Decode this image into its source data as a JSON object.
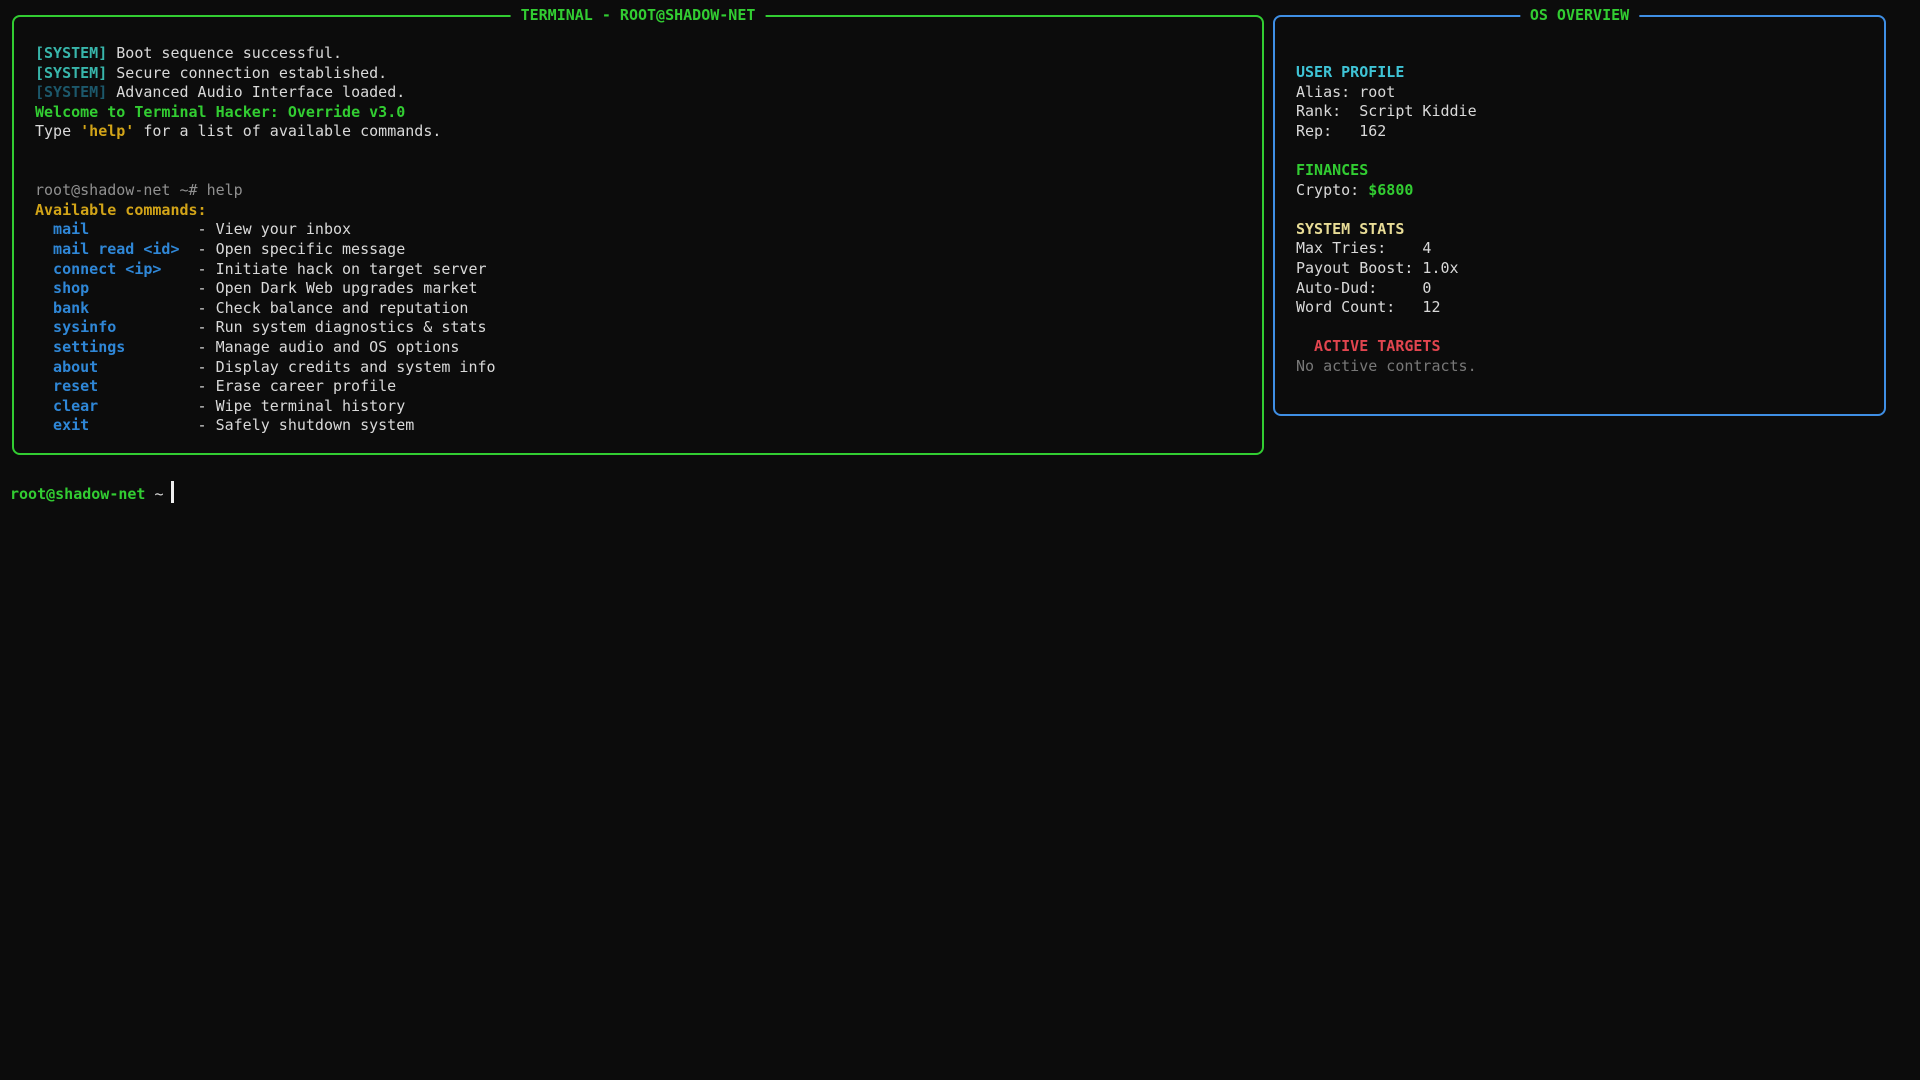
{
  "window": {
    "background": "#0c0c0c"
  },
  "colors": {
    "terminal_border": "#32cd32",
    "os_border": "#3f8fe5",
    "green": "#32cd32",
    "command_blue": "#2f87d7",
    "system_tag_teal": "#38b6ab",
    "system_tag_dim": "#1c586b",
    "cyan": "#3fc4d6",
    "gold": "#d2a418",
    "pale_yellow": "#e8dc96",
    "red": "#e2454f",
    "text": "#d9d9d9",
    "gray": "#909090",
    "muted": "#787878"
  },
  "terminal": {
    "title": "TERMINAL - ROOT@SHADOW-NET",
    "boot_lines": [
      {
        "tag": "[SYSTEM]",
        "text": "Boot sequence successful."
      },
      {
        "tag": "[SYSTEM]",
        "text": "Secure connection established."
      },
      {
        "tag": "[SYSTEM]",
        "text": "Advanced Audio Interface loaded."
      }
    ],
    "welcome": "Welcome to Terminal Hacker: Override v3.0",
    "hint": {
      "prefix": "Type ",
      "code": "'help'",
      "suffix": " for a list of available commands."
    },
    "history_command": "root@shadow-net ~# help",
    "commands_header": "Available commands:",
    "commands": [
      {
        "name": "mail",
        "desc": "- View your inbox"
      },
      {
        "name": "mail read <id>",
        "desc": "- Open specific message"
      },
      {
        "name": "connect <ip>",
        "desc": "- Initiate hack on target server"
      },
      {
        "name": "shop",
        "desc": "- Open Dark Web upgrades market"
      },
      {
        "name": "bank",
        "desc": "- Check balance and reputation"
      },
      {
        "name": "sysinfo",
        "desc": "- Run system diagnostics & stats"
      },
      {
        "name": "settings",
        "desc": "- Manage audio and OS options"
      },
      {
        "name": "about",
        "desc": "- Display credits and system info"
      },
      {
        "name": "reset",
        "desc": "- Erase career profile"
      },
      {
        "name": "clear",
        "desc": "- Wipe terminal history"
      },
      {
        "name": "exit",
        "desc": "- Safely shutdown system"
      }
    ]
  },
  "os_overview": {
    "title": "OS OVERVIEW",
    "user_profile": {
      "header": "USER PROFILE",
      "rows": [
        {
          "label": "Alias:",
          "value": "root"
        },
        {
          "label": "Rank:",
          "value": "Script Kiddie"
        },
        {
          "label": "Rep:",
          "value": "162"
        }
      ]
    },
    "finances": {
      "header": "FINANCES",
      "label": "Crypto:",
      "value": "$6800"
    },
    "system_stats": {
      "header": "SYSTEM STATS",
      "rows": [
        {
          "label": "Max Tries:",
          "value": "4"
        },
        {
          "label": "Payout Boost:",
          "value": "1.0x"
        },
        {
          "label": "Auto-Dud:",
          "value": "0"
        },
        {
          "label": "Word Count:",
          "value": "12"
        }
      ]
    },
    "active_targets": {
      "header": "ACTIVE TARGETS",
      "empty_message": "No active contracts."
    }
  },
  "shell": {
    "user": "root@shadow-net",
    "path": "~"
  }
}
